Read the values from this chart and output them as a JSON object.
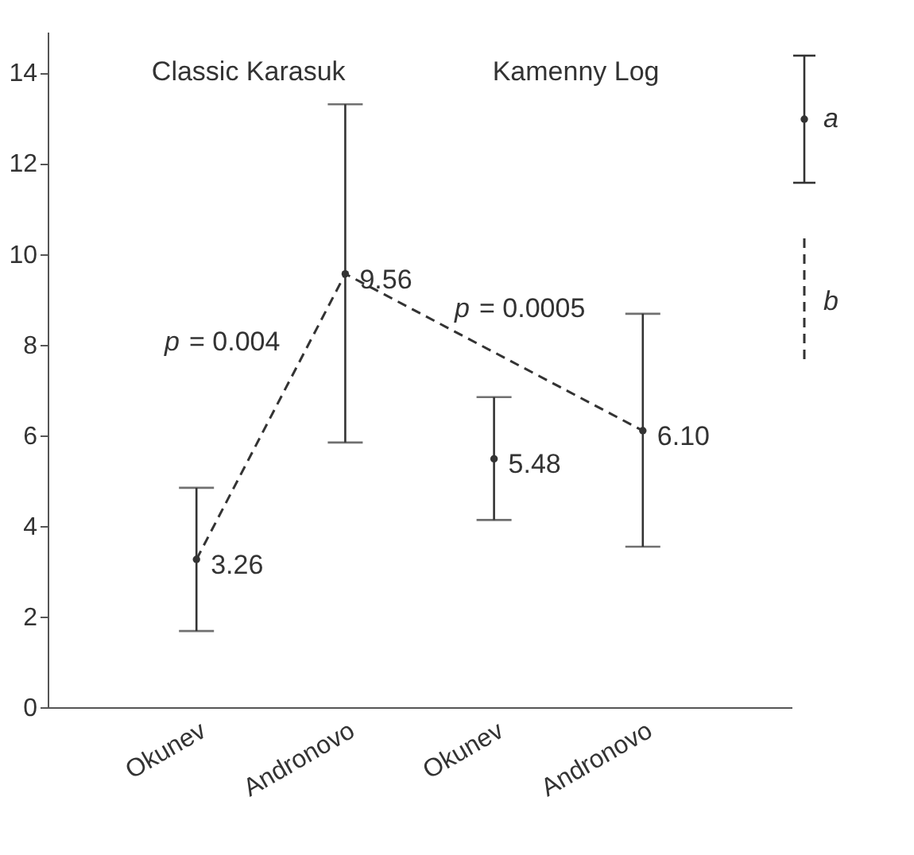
{
  "chart_data": {
    "type": "scatter",
    "categories": [
      "Okunev",
      "Andronovo",
      "Okunev",
      "Andronovo"
    ],
    "series": [
      {
        "name": "a",
        "color": "#333333",
        "marker": "circle",
        "values": [
          3.26,
          9.56,
          5.48,
          6.1
        ],
        "errors": [
          [
            1.68,
            4.84
          ],
          [
            5.84,
            13.3
          ],
          [
            4.13,
            6.84
          ],
          [
            3.54,
            8.68
          ]
        ],
        "value_labels": [
          "3.26",
          "9.56",
          "5.48",
          "6.10"
        ]
      },
      {
        "name": "b",
        "type": "line",
        "color": "#333333",
        "line_style": "dashed",
        "marker": "none",
        "values": [
          3.26,
          9.56,
          null,
          6.1
        ]
      }
    ],
    "ylim": [
      0,
      14.9
    ],
    "yticks": [
      0,
      2,
      4,
      6,
      8,
      10,
      12,
      14
    ],
    "grid": false,
    "legend": "right",
    "annotations": [
      "Classic Karasuk",
      "Kamenny Log",
      "p = 0.004",
      "p = 0.0005"
    ]
  }
}
